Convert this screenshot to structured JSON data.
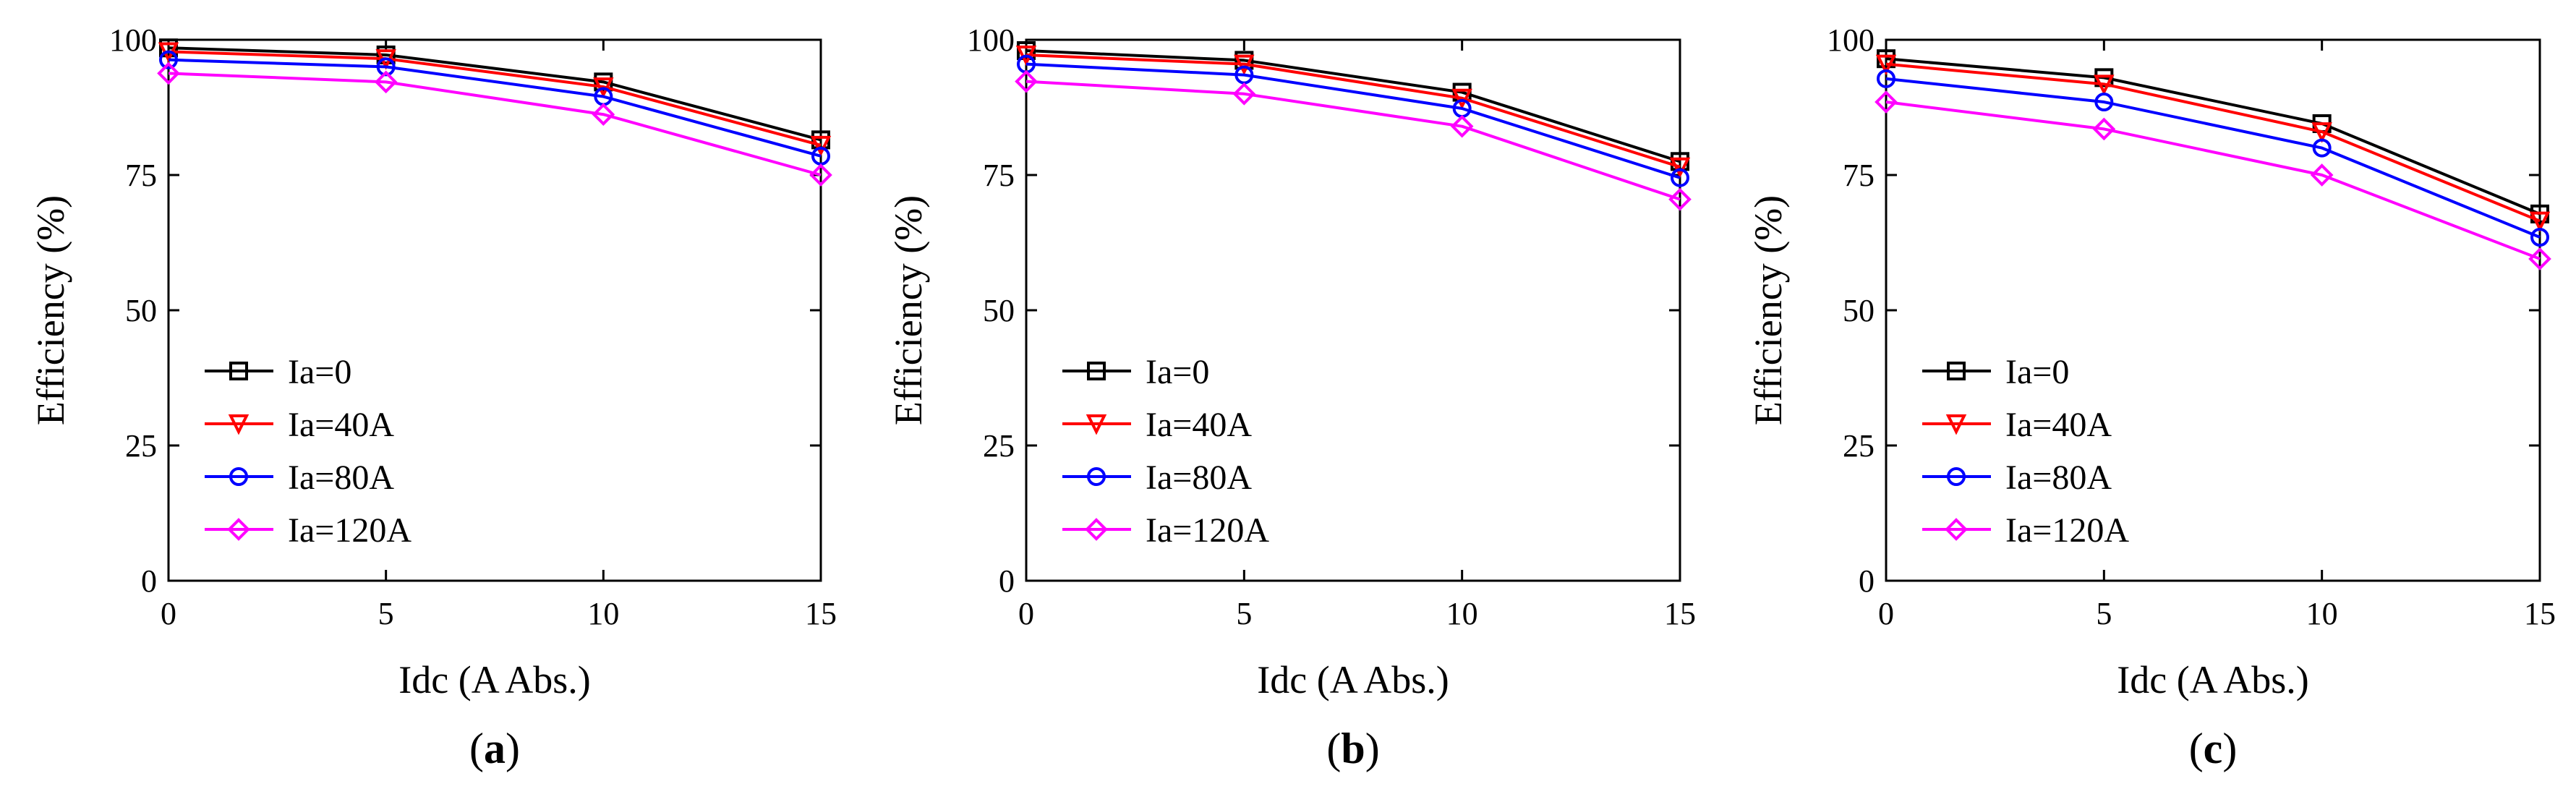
{
  "chart_data": [
    {
      "type": "line",
      "panel_label": "a",
      "xlabel": "Idc (A Abs.)",
      "ylabel": "Efficiency (%)",
      "x": [
        0,
        5,
        10,
        15
      ],
      "xticks": [
        "0",
        "5",
        "10",
        "15"
      ],
      "yticks": [
        "0",
        "25",
        "50",
        "75",
        "100"
      ],
      "xlim": [
        0,
        15
      ],
      "ylim": [
        0,
        100
      ],
      "legend_position": "lower-left",
      "grid": false,
      "series": [
        {
          "name": "Ia=0",
          "marker": "square",
          "color": "#000000",
          "values": [
            98.5,
            97.2,
            92.2,
            81.5
          ]
        },
        {
          "name": "Ia=40A",
          "marker": "triangle-down",
          "color": "#ff0000",
          "values": [
            97.8,
            96.5,
            91.3,
            80.5
          ]
        },
        {
          "name": "Ia=80A",
          "marker": "circle",
          "color": "#0000ff",
          "values": [
            96.3,
            95.0,
            89.5,
            78.5
          ]
        },
        {
          "name": "Ia=120A",
          "marker": "diamond",
          "color": "#ff00ff",
          "values": [
            93.8,
            92.2,
            86.2,
            75.0
          ]
        }
      ]
    },
    {
      "type": "line",
      "panel_label": "b",
      "xlabel": "Idc (A Abs.)",
      "ylabel": "Efficiency (%)",
      "x": [
        0,
        5,
        10,
        15
      ],
      "xticks": [
        "0",
        "5",
        "10",
        "15"
      ],
      "yticks": [
        "0",
        "25",
        "50",
        "75",
        "100"
      ],
      "xlim": [
        0,
        15
      ],
      "ylim": [
        0,
        100
      ],
      "legend_position": "lower-left",
      "grid": false,
      "series": [
        {
          "name": "Ia=0",
          "marker": "square",
          "color": "#000000",
          "values": [
            98.0,
            96.2,
            90.3,
            77.5
          ]
        },
        {
          "name": "Ia=40A",
          "marker": "triangle-down",
          "color": "#ff0000",
          "values": [
            97.2,
            95.5,
            89.2,
            76.5
          ]
        },
        {
          "name": "Ia=80A",
          "marker": "circle",
          "color": "#0000ff",
          "values": [
            95.5,
            93.5,
            87.3,
            74.5
          ]
        },
        {
          "name": "Ia=120A",
          "marker": "diamond",
          "color": "#ff00ff",
          "values": [
            92.3,
            90.0,
            84.0,
            70.5
          ]
        }
      ]
    },
    {
      "type": "line",
      "panel_label": "c",
      "xlabel": "Idc (A Abs.)",
      "ylabel": "Efficiency (%)",
      "x": [
        0,
        5,
        10,
        15
      ],
      "xticks": [
        "0",
        "5",
        "10",
        "15"
      ],
      "yticks": [
        "0",
        "25",
        "50",
        "75",
        "100"
      ],
      "xlim": [
        0,
        15
      ],
      "ylim": [
        0,
        100
      ],
      "legend_position": "lower-left",
      "grid": false,
      "series": [
        {
          "name": "Ia=0",
          "marker": "square",
          "color": "#000000",
          "values": [
            96.5,
            93.0,
            84.5,
            67.8
          ]
        },
        {
          "name": "Ia=40A",
          "marker": "triangle-down",
          "color": "#ff0000",
          "values": [
            95.5,
            91.8,
            83.0,
            66.5
          ]
        },
        {
          "name": "Ia=80A",
          "marker": "circle",
          "color": "#0000ff",
          "values": [
            92.8,
            88.5,
            80.0,
            63.5
          ]
        },
        {
          "name": "Ia=120A",
          "marker": "diamond",
          "color": "#ff00ff",
          "values": [
            88.5,
            83.5,
            75.0,
            59.5
          ]
        }
      ]
    }
  ]
}
